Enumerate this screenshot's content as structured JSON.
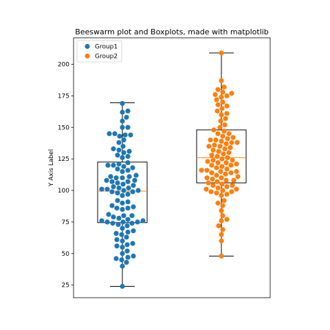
{
  "chart_data": {
    "type": "scatter",
    "subtype": "beeswarm with boxplots",
    "title": "Beeswarm plot and Boxplots, made with matplotlib",
    "xlabel": "",
    "ylabel": "Y Axis Label",
    "ylim": [
      15,
      221
    ],
    "yticks": [
      25,
      50,
      75,
      100,
      125,
      150,
      175,
      200
    ],
    "grid": false,
    "legend_position": "top-left",
    "series": [
      {
        "name": "Group1",
        "color": "#1f77b4",
        "box": {
          "whisker_low": 24,
          "q1": 74.5,
          "median": 99.5,
          "q3": 122.5,
          "whisker_high": 169.5
        },
        "values": [
          24,
          40,
          43,
          45,
          46,
          47,
          48,
          50,
          52,
          55,
          56,
          57,
          58,
          60,
          61,
          63,
          65,
          66,
          67,
          68,
          70,
          72,
          73,
          74,
          74,
          75,
          75,
          75,
          76,
          76,
          77,
          78,
          79,
          80,
          80,
          81,
          85,
          86,
          86,
          87,
          88,
          90,
          91,
          92,
          96,
          97,
          98,
          99,
          99,
          100,
          100,
          101,
          101,
          102,
          102,
          103,
          104,
          105,
          106,
          107,
          107,
          108,
          108,
          110,
          110,
          111,
          111,
          112,
          115,
          116,
          117,
          118,
          119,
          120,
          120,
          121,
          122,
          126,
          127,
          128,
          130,
          131,
          132,
          133,
          135,
          138,
          140,
          143,
          144,
          144,
          145,
          145,
          150,
          150,
          155,
          158,
          162,
          163,
          169
        ]
      },
      {
        "name": "Group2",
        "color": "#ff7f0e",
        "box": {
          "whisker_low": 48,
          "q1": 106,
          "median": 126,
          "q3": 148,
          "whisker_high": 209
        },
        "values": [
          48,
          60,
          65,
          69,
          72,
          76,
          77,
          80,
          84,
          88,
          90,
          92,
          96,
          97,
          98,
          99,
          99,
          100,
          101,
          101,
          102,
          103,
          104,
          104,
          105,
          106,
          107,
          108,
          108,
          109,
          110,
          110,
          111,
          112,
          113,
          114,
          114,
          115,
          115,
          116,
          116,
          117,
          118,
          119,
          120,
          120,
          121,
          122,
          122,
          123,
          124,
          124,
          125,
          126,
          127,
          128,
          129,
          130,
          131,
          132,
          133,
          134,
          135,
          135,
          136,
          137,
          138,
          138,
          139,
          140,
          140,
          141,
          142,
          143,
          145,
          145,
          147,
          148,
          150,
          152,
          155,
          157,
          160,
          161,
          163,
          165,
          167,
          168,
          170,
          172,
          174,
          175,
          176,
          177,
          178,
          180,
          182,
          187,
          209
        ]
      }
    ]
  }
}
